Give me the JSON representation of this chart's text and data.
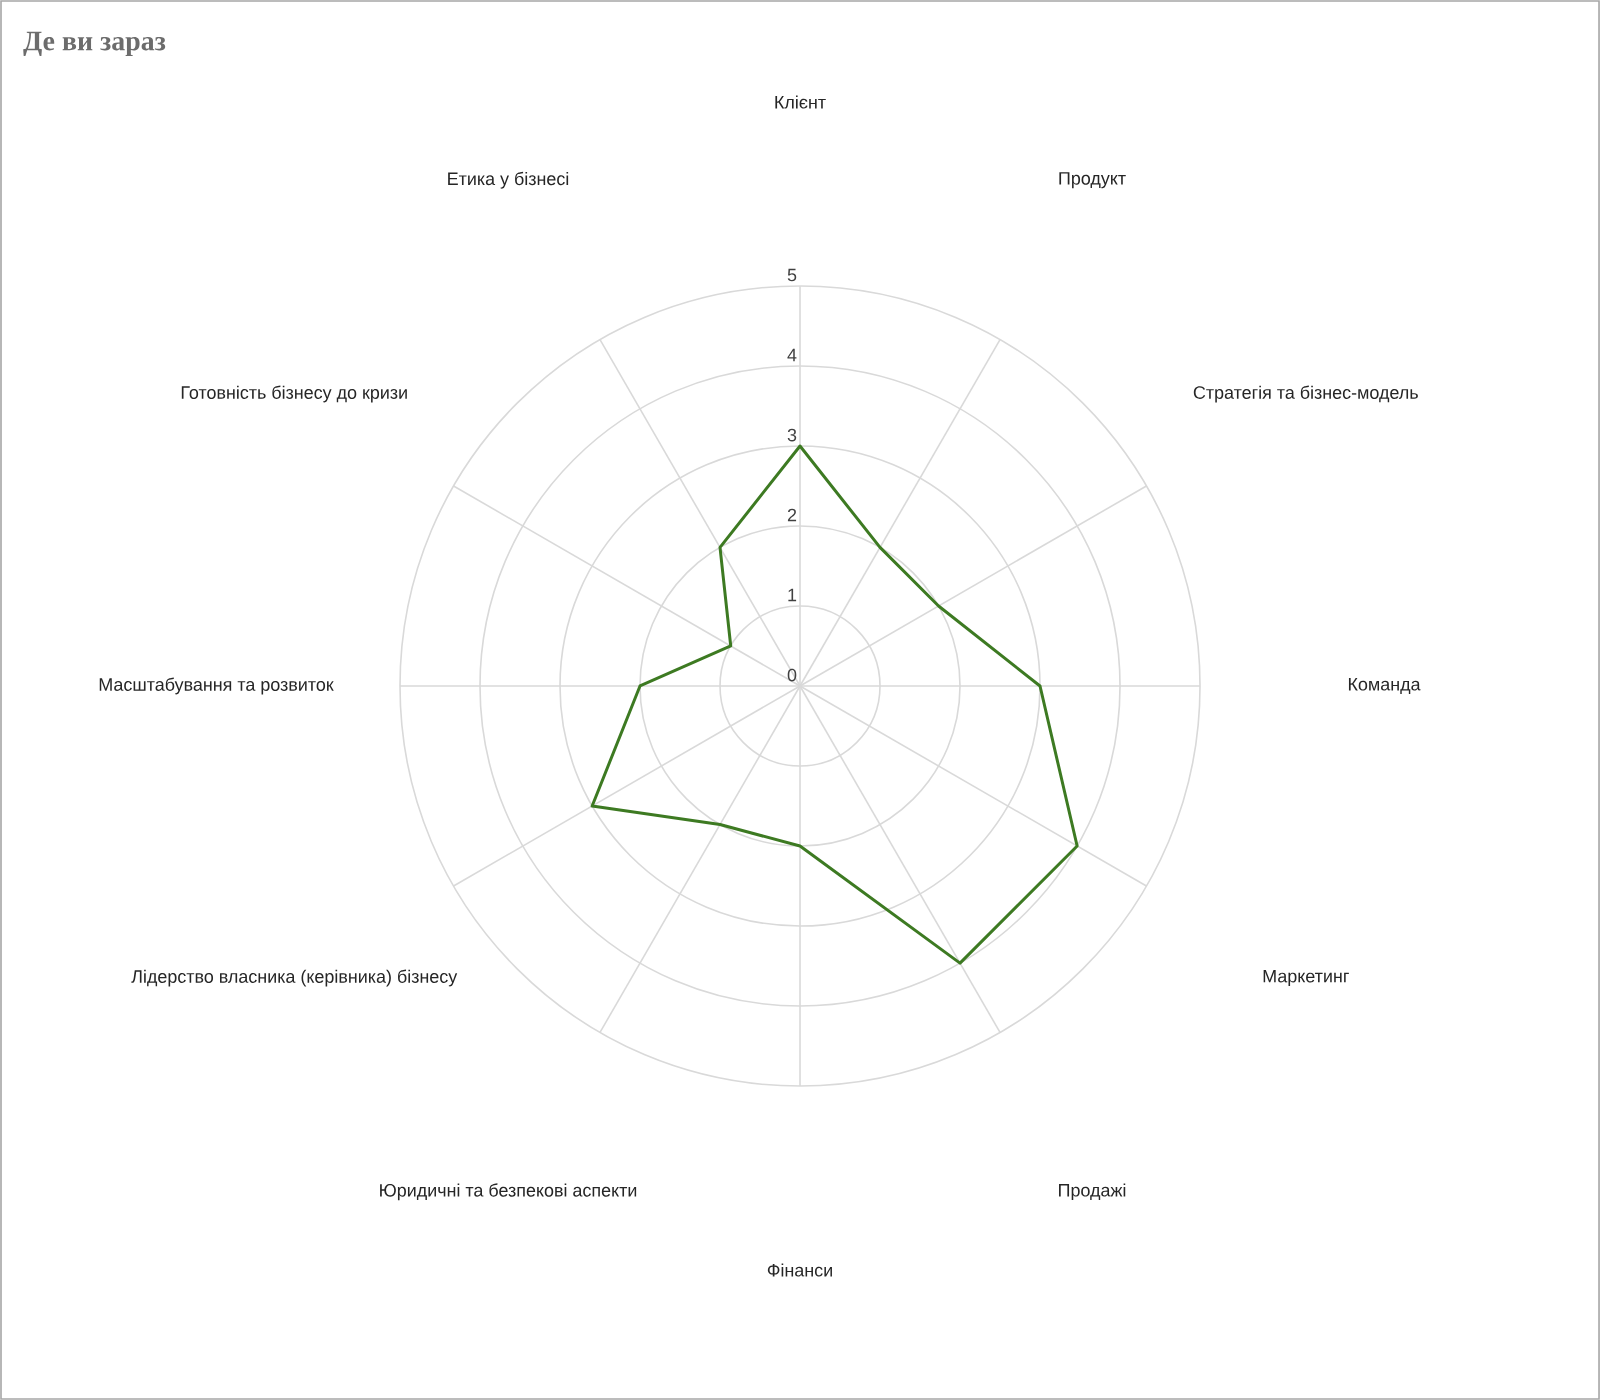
{
  "chart_data": {
    "type": "radar",
    "title": "Де ви зараз",
    "categories": [
      "Клієнт",
      "Продукт",
      "Стратегія та бізнес-модель",
      "Команда",
      "Маркетинг",
      "Продажі",
      "Фінанси",
      "Юридичні та безпекові аспекти",
      "Лідерство власника (керівника) бізнесу",
      "Масштабування та розвиток",
      "Готовність бізнесу до кризи",
      "Етика у бізнесі"
    ],
    "series": [
      {
        "color": "#3d7a22",
        "values": [
          3,
          2,
          2,
          3,
          4,
          4,
          2,
          2,
          3,
          2,
          1,
          2
        ]
      }
    ],
    "ylim": [
      0,
      5
    ],
    "yticks": [
      0,
      1,
      2,
      3,
      4,
      5
    ],
    "grid": true
  }
}
